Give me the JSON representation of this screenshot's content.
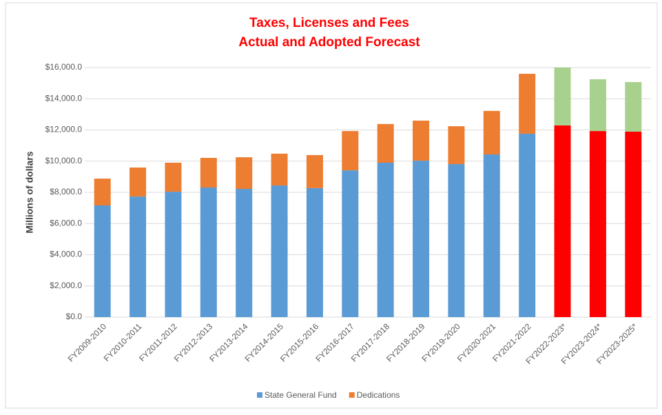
{
  "chart_data": {
    "type": "stacked_bar",
    "title": [
      "Taxes, Licenses and Fees",
      "Actual and Adopted Forecast"
    ],
    "y_label": "Millions of dollars",
    "categories": [
      "FY2009-2010",
      "FY2010-2011",
      "FY2011-2012",
      "FY2012-2013",
      "FY2013-2014",
      "FY2014-2015",
      "FY2015-2016",
      "FY2016-2017",
      "FY2017-2018",
      "FY2018-2019",
      "FY2019-2020",
      "FY2020-2021",
      "FY2021-2022",
      "FY2022-2023*",
      "FY2023-2024*",
      "FY2023-2025*"
    ],
    "series": [
      {
        "name": "State General Fund",
        "color": "#5b9bd5",
        "colors": [
          "#5b9bd5",
          "#5b9bd5",
          "#5b9bd5",
          "#5b9bd5",
          "#5b9bd5",
          "#5b9bd5",
          "#5b9bd5",
          "#5b9bd5",
          "#5b9bd5",
          "#5b9bd5",
          "#5b9bd5",
          "#5b9bd5",
          "#5b9bd5",
          "#ff0000",
          "#ff0000",
          "#ff0000"
        ],
        "values": [
          7160,
          7730,
          8040,
          8310,
          8220,
          8440,
          8270,
          9410,
          9900,
          10030,
          9810,
          10430,
          11760,
          12290,
          11930,
          11890
        ]
      },
      {
        "name": "Dedications",
        "color": "#ed7d31",
        "colors": [
          "#ed7d31",
          "#ed7d31",
          "#ed7d31",
          "#ed7d31",
          "#ed7d31",
          "#ed7d31",
          "#ed7d31",
          "#ed7d31",
          "#ed7d31",
          "#ed7d31",
          "#ed7d31",
          "#ed7d31",
          "#ed7d31",
          "#a9d18e",
          "#a9d18e",
          "#a9d18e"
        ],
        "values": [
          1720,
          1860,
          1860,
          1900,
          2030,
          2040,
          2120,
          2520,
          2480,
          2570,
          2430,
          2790,
          3840,
          3710,
          3320,
          3180
        ]
      }
    ],
    "ylim": [
      0,
      16000
    ],
    "yticks": [
      {
        "value": 0,
        "label": "$0.0"
      },
      {
        "value": 2000,
        "label": "$2,000.0"
      },
      {
        "value": 4000,
        "label": "$4,000.0"
      },
      {
        "value": 6000,
        "label": "$6,000.0"
      },
      {
        "value": 8000,
        "label": "$8,000.0"
      },
      {
        "value": 10000,
        "label": "$10,000.0"
      },
      {
        "value": 12000,
        "label": "$12,000.0"
      },
      {
        "value": 14000,
        "label": "$14,000.0"
      },
      {
        "value": 16000,
        "label": "$16,000.0"
      }
    ],
    "grid": true,
    "legend": "bottom"
  }
}
